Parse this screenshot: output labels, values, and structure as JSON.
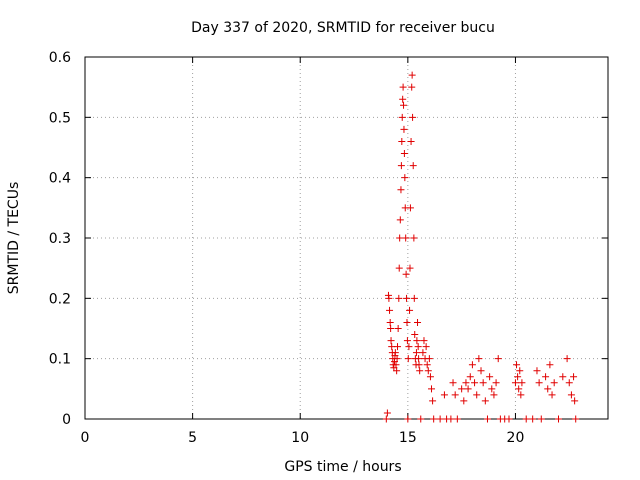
{
  "chart_data": {
    "type": "scatter",
    "title": "Day 337 of 2020, SRMTID for receiver bucu",
    "xlabel": "GPS time / hours",
    "ylabel": "SRMTID / TECUs",
    "xlim": [
      0,
      24.3
    ],
    "ylim": [
      0,
      0.6
    ],
    "xticks": [
      0,
      5,
      10,
      15,
      20
    ],
    "xtick_labels": [
      "0",
      "5",
      "10",
      "15",
      "20"
    ],
    "yticks": [
      0,
      0.1,
      0.2,
      0.3,
      0.4,
      0.5,
      0.6
    ],
    "ytick_labels": [
      "0",
      "0.1",
      "0.2",
      "0.3",
      "0.4",
      "0.5",
      "0.6"
    ],
    "grid": true,
    "marker": "+",
    "color": "#e00000",
    "series": [
      {
        "name": "SRMTID",
        "points": [
          [
            14.0,
            0.0
          ],
          [
            14.05,
            0.01
          ],
          [
            14.1,
            0.205
          ],
          [
            14.12,
            0.2
          ],
          [
            14.15,
            0.18
          ],
          [
            14.18,
            0.16
          ],
          [
            14.2,
            0.15
          ],
          [
            14.22,
            0.13
          ],
          [
            14.25,
            0.12
          ],
          [
            14.28,
            0.11
          ],
          [
            14.3,
            0.1
          ],
          [
            14.32,
            0.09
          ],
          [
            14.35,
            0.085
          ],
          [
            14.38,
            0.095
          ],
          [
            14.4,
            0.105
          ],
          [
            14.42,
            0.11
          ],
          [
            14.45,
            0.09
          ],
          [
            14.48,
            0.08
          ],
          [
            14.5,
            0.1
          ],
          [
            14.52,
            0.12
          ],
          [
            14.55,
            0.15
          ],
          [
            14.58,
            0.2
          ],
          [
            14.6,
            0.25
          ],
          [
            14.62,
            0.3
          ],
          [
            14.65,
            0.33
          ],
          [
            14.68,
            0.38
          ],
          [
            14.7,
            0.42
          ],
          [
            14.72,
            0.46
          ],
          [
            14.74,
            0.5
          ],
          [
            14.76,
            0.53
          ],
          [
            14.78,
            0.55
          ],
          [
            14.8,
            0.52
          ],
          [
            14.82,
            0.48
          ],
          [
            14.84,
            0.44
          ],
          [
            14.86,
            0.4
          ],
          [
            14.88,
            0.35
          ],
          [
            14.9,
            0.3
          ],
          [
            14.92,
            0.24
          ],
          [
            14.94,
            0.2
          ],
          [
            14.96,
            0.16
          ],
          [
            14.98,
            0.13
          ],
          [
            15.0,
            0.0
          ],
          [
            15.02,
            0.1
          ],
          [
            15.05,
            0.12
          ],
          [
            15.08,
            0.18
          ],
          [
            15.1,
            0.25
          ],
          [
            15.12,
            0.35
          ],
          [
            15.15,
            0.46
          ],
          [
            15.18,
            0.55
          ],
          [
            15.2,
            0.57
          ],
          [
            15.22,
            0.5
          ],
          [
            15.25,
            0.42
          ],
          [
            15.28,
            0.3
          ],
          [
            15.3,
            0.2
          ],
          [
            15.32,
            0.14
          ],
          [
            15.35,
            0.1
          ],
          [
            15.38,
            0.09
          ],
          [
            15.4,
            0.11
          ],
          [
            15.42,
            0.13
          ],
          [
            15.45,
            0.16
          ],
          [
            15.48,
            0.12
          ],
          [
            15.5,
            0.1
          ],
          [
            15.52,
            0.09
          ],
          [
            15.55,
            0.08
          ],
          [
            15.6,
            0.0
          ],
          [
            15.7,
            0.11
          ],
          [
            15.75,
            0.13
          ],
          [
            15.8,
            0.1
          ],
          [
            15.85,
            0.12
          ],
          [
            15.9,
            0.09
          ],
          [
            15.95,
            0.08
          ],
          [
            16.0,
            0.1
          ],
          [
            16.05,
            0.07
          ],
          [
            16.1,
            0.05
          ],
          [
            16.15,
            0.03
          ],
          [
            16.2,
            0.0
          ],
          [
            16.5,
            0.0
          ],
          [
            16.7,
            0.04
          ],
          [
            16.8,
            0.0
          ],
          [
            17.0,
            0.0
          ],
          [
            17.1,
            0.06
          ],
          [
            17.2,
            0.04
          ],
          [
            17.3,
            0.0
          ],
          [
            17.5,
            0.05
          ],
          [
            17.6,
            0.03
          ],
          [
            17.7,
            0.06
          ],
          [
            17.8,
            0.05
          ],
          [
            17.9,
            0.07
          ],
          [
            18.0,
            0.09
          ],
          [
            18.1,
            0.06
          ],
          [
            18.2,
            0.04
          ],
          [
            18.3,
            0.1
          ],
          [
            18.4,
            0.08
          ],
          [
            18.5,
            0.06
          ],
          [
            18.6,
            0.03
          ],
          [
            18.7,
            0.0
          ],
          [
            18.8,
            0.07
          ],
          [
            18.9,
            0.05
          ],
          [
            19.0,
            0.04
          ],
          [
            19.1,
            0.06
          ],
          [
            19.2,
            0.1
          ],
          [
            19.3,
            0.0
          ],
          [
            19.5,
            0.0
          ],
          [
            19.7,
            0.0
          ],
          [
            20.0,
            0.06
          ],
          [
            20.05,
            0.09
          ],
          [
            20.1,
            0.07
          ],
          [
            20.15,
            0.05
          ],
          [
            20.2,
            0.08
          ],
          [
            20.25,
            0.04
          ],
          [
            20.3,
            0.06
          ],
          [
            20.5,
            0.0
          ],
          [
            20.8,
            0.0
          ],
          [
            21.0,
            0.08
          ],
          [
            21.1,
            0.06
          ],
          [
            21.2,
            0.0
          ],
          [
            21.4,
            0.07
          ],
          [
            21.5,
            0.05
          ],
          [
            21.6,
            0.09
          ],
          [
            21.7,
            0.04
          ],
          [
            21.8,
            0.06
          ],
          [
            22.0,
            0.0
          ],
          [
            22.2,
            0.07
          ],
          [
            22.4,
            0.1
          ],
          [
            22.5,
            0.06
          ],
          [
            22.6,
            0.04
          ],
          [
            22.7,
            0.07
          ],
          [
            22.75,
            0.03
          ],
          [
            22.8,
            0.0
          ]
        ]
      }
    ]
  }
}
